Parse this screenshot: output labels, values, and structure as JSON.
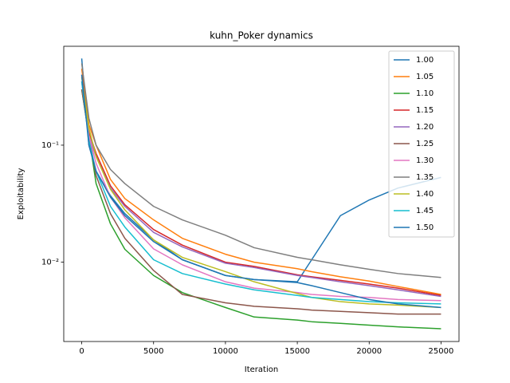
{
  "chart_data": {
    "type": "line",
    "title": "kuhn_Poker dynamics",
    "x_label": "Iteration",
    "y_label": "Exploitability",
    "x": [
      0,
      500,
      1000,
      2000,
      3000,
      5000,
      7000,
      10000,
      12000,
      15000,
      16000,
      18000,
      20000,
      22000,
      25000
    ],
    "series": [
      {
        "name": "1.00",
        "color": "#1f77b4",
        "values": [
          0.55,
          0.1,
          0.06,
          0.037,
          0.026,
          0.0155,
          0.0105,
          0.0077,
          0.0071,
          0.0068,
          0.0105,
          0.025,
          0.034,
          0.043,
          0.053
        ]
      },
      {
        "name": "1.05",
        "color": "#ff7f0e",
        "values": [
          0.45,
          0.15,
          0.1,
          0.051,
          0.035,
          0.023,
          0.016,
          0.0117,
          0.01,
          0.0088,
          0.0083,
          0.0075,
          0.0069,
          0.0062,
          0.0053
        ]
      },
      {
        "name": "1.10",
        "color": "#2ca02c",
        "values": [
          0.3,
          0.12,
          0.047,
          0.0213,
          0.0129,
          0.0077,
          0.0055,
          0.0041,
          0.0034,
          0.0032,
          0.0031,
          0.003,
          0.0029,
          0.0028,
          0.0027
        ]
      },
      {
        "name": "1.15",
        "color": "#d62728",
        "values": [
          0.4,
          0.13,
          0.085,
          0.045,
          0.031,
          0.019,
          0.014,
          0.01,
          0.0092,
          0.0078,
          0.0075,
          0.007,
          0.0065,
          0.006,
          0.0052
        ]
      },
      {
        "name": "1.20",
        "color": "#9467bd",
        "values": [
          0.35,
          0.12,
          0.08,
          0.043,
          0.03,
          0.018,
          0.0135,
          0.0098,
          0.009,
          0.0077,
          0.0074,
          0.0068,
          0.0063,
          0.0058,
          0.0051
        ]
      },
      {
        "name": "1.25",
        "color": "#8c564b",
        "values": [
          0.3,
          0.12,
          0.055,
          0.026,
          0.016,
          0.0085,
          0.0053,
          0.0045,
          0.0042,
          0.004,
          0.0039,
          0.0038,
          0.0037,
          0.0036,
          0.0036
        ]
      },
      {
        "name": "1.30",
        "color": "#e377c2",
        "values": [
          0.35,
          0.12,
          0.07,
          0.036,
          0.024,
          0.013,
          0.0095,
          0.0068,
          0.006,
          0.0055,
          0.0053,
          0.0051,
          0.005,
          0.0048,
          0.0047
        ]
      },
      {
        "name": "1.35",
        "color": "#7f7f7f",
        "values": [
          0.5,
          0.17,
          0.1,
          0.062,
          0.047,
          0.03,
          0.023,
          0.017,
          0.0133,
          0.011,
          0.0105,
          0.0095,
          0.0087,
          0.008,
          0.0074
        ]
      },
      {
        "name": "1.40",
        "color": "#bcbd22",
        "values": [
          0.38,
          0.14,
          0.08,
          0.042,
          0.028,
          0.0155,
          0.011,
          0.0083,
          0.0068,
          0.0054,
          0.005,
          0.0046,
          0.0044,
          0.0043,
          0.0041
        ]
      },
      {
        "name": "1.45",
        "color": "#17becf",
        "values": [
          0.35,
          0.11,
          0.06,
          0.03,
          0.02,
          0.0105,
          0.008,
          0.0065,
          0.0058,
          0.0052,
          0.005,
          0.0048,
          0.0046,
          0.0045,
          0.0044
        ]
      },
      {
        "name": "1.50",
        "color": "#1f77b4",
        "values": [
          0.4,
          0.1,
          0.06,
          0.036,
          0.025,
          0.015,
          0.0105,
          0.0077,
          0.0071,
          0.0067,
          0.0063,
          0.0055,
          0.0048,
          0.0044,
          0.0041
        ]
      }
    ],
    "xlim": [
      -1250,
      26250
    ],
    "xticks": [
      0,
      5000,
      10000,
      15000,
      20000,
      25000
    ],
    "ylim": [
      0.0021,
      0.7
    ],
    "yscale": "log",
    "yticks": [
      {
        "value": 0.01,
        "label": "10⁻²"
      },
      {
        "value": 0.1,
        "label": "10⁻¹"
      }
    ],
    "legend": "upper right"
  }
}
